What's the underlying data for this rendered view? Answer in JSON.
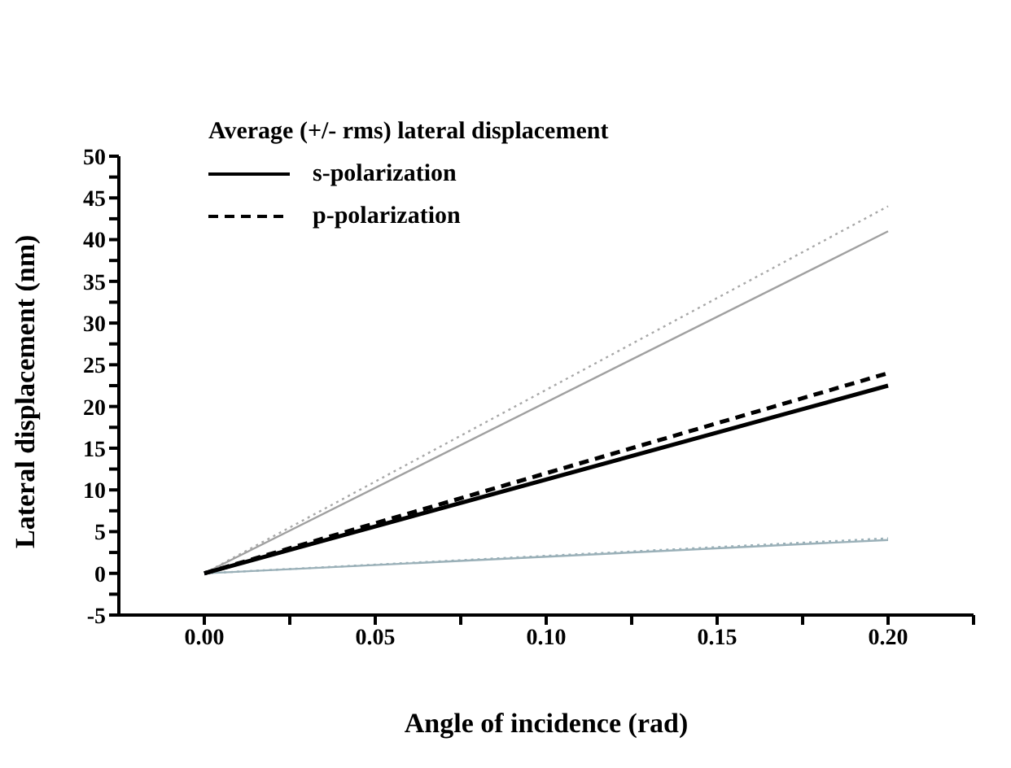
{
  "chart_data": {
    "type": "line",
    "xlabel": "Angle of incidence (rad)",
    "ylabel": "Lateral displacement (nm)",
    "legend_title": "Average (+/- rms) lateral displacement",
    "legend": "top left",
    "grid": false,
    "marker": "none",
    "x": [
      0,
      0.2
    ],
    "series": [
      {
        "color": "#a8a8a8",
        "line_style": "dotted",
        "values": [
          0,
          44
        ]
      },
      {
        "color": "#a0a0a0",
        "line_style": "solid",
        "values": [
          0,
          41
        ]
      },
      {
        "color": "#9ab0b8",
        "line_style": "dotted",
        "values": [
          0,
          4.2
        ]
      },
      {
        "color": "#9ab0b8",
        "line_style": "solid",
        "values": [
          0,
          4
        ]
      },
      {
        "name": "p-polarization",
        "color": "#000000",
        "line_style": "dashed",
        "values": [
          0,
          24
        ]
      },
      {
        "name": "s-polarization",
        "color": "#000000",
        "line_style": "solid",
        "values": [
          0,
          22.5
        ]
      }
    ],
    "xlim": [
      -0.025,
      0.225
    ],
    "xticks": [
      {
        "value": 0,
        "label": "0.00"
      },
      {
        "value": 0.025,
        "label": null
      },
      {
        "value": 0.05,
        "label": "0.05"
      },
      {
        "value": 0.075,
        "label": null
      },
      {
        "value": 0.1,
        "label": "0.10"
      },
      {
        "value": 0.125,
        "label": null
      },
      {
        "value": 0.15,
        "label": "0.15"
      },
      {
        "value": 0.175,
        "label": null
      },
      {
        "value": 0.2,
        "label": "0.20"
      },
      {
        "value": 0.225,
        "label": null
      }
    ],
    "ylim": [
      -5,
      50
    ],
    "yticks": [
      -5,
      {
        "value": -2.5,
        "label": null
      },
      0,
      {
        "value": 2.5,
        "label": null
      },
      5,
      {
        "value": 7.5,
        "label": null
      },
      10,
      {
        "value": 12.5,
        "label": null
      },
      15,
      {
        "value": 17.5,
        "label": null
      },
      20,
      {
        "value": 22.5,
        "label": null
      },
      25,
      {
        "value": 27.5,
        "label": null
      },
      30,
      {
        "value": 32.5,
        "label": null
      },
      35,
      {
        "value": 37.5,
        "label": null
      },
      40,
      {
        "value": 42.5,
        "label": null
      },
      45,
      {
        "value": 47.5,
        "label": null
      },
      50
    ]
  }
}
